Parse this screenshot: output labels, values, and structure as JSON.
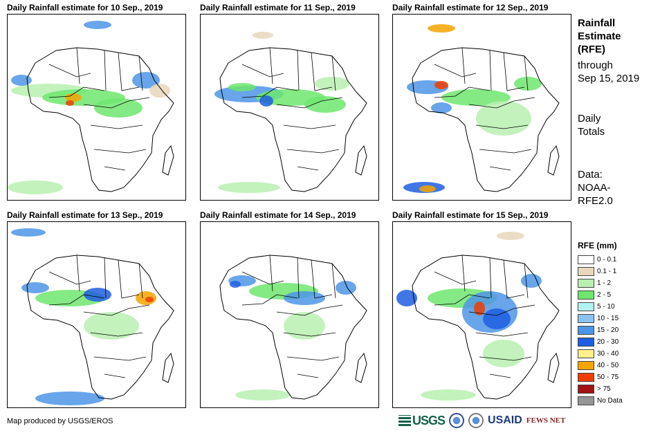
{
  "panels": [
    {
      "title": "Daily Rainfall estimate for 10 Sep., 2019"
    },
    {
      "title": "Daily Rainfall estimate for 11 Sep., 2019"
    },
    {
      "title": "Daily Rainfall estimate for 12 Sep., 2019"
    },
    {
      "title": "Daily Rainfall estimate for 13 Sep., 2019"
    },
    {
      "title": "Daily Rainfall estimate for 14 Sep., 2019"
    },
    {
      "title": "Daily Rainfall estimate for 15 Sep., 2019"
    }
  ],
  "sidebar": {
    "title_line1": "Rainfall",
    "title_line2": "Estimate",
    "title_line3": "(RFE)",
    "through_line1": "through",
    "through_line2": "Sep 15, 2019",
    "daily_line1": "Daily",
    "daily_line2": "Totals",
    "data_line1": "Data:",
    "data_line2": "NOAA-",
    "data_line3": "RFE2.0"
  },
  "legend": {
    "title": "RFE (mm)",
    "items": [
      {
        "label": "0 - 0.1",
        "color": "#ffffff"
      },
      {
        "label": "0.1 - 1",
        "color": "#e8d7bb"
      },
      {
        "label": "1 - 2",
        "color": "#b8f0b0"
      },
      {
        "label": "2 - 5",
        "color": "#6ee66e"
      },
      {
        "label": "5 - 10",
        "color": "#b2f2f2"
      },
      {
        "label": "10 - 15",
        "color": "#8cc3f0"
      },
      {
        "label": "15 - 20",
        "color": "#4d95e6"
      },
      {
        "label": "20 - 30",
        "color": "#1f5ee0"
      },
      {
        "label": "30 - 40",
        "color": "#fff18c"
      },
      {
        "label": "40 - 50",
        "color": "#f5a500"
      },
      {
        "label": "50 - 75",
        "color": "#f03c00"
      },
      {
        "label": "> 75",
        "color": "#a01414"
      },
      {
        "label": "No Data",
        "color": "#969696"
      }
    ]
  },
  "credit": "Map produced by USGS/EROS",
  "logos": {
    "usgs": "USGS",
    "usaid": "USAID",
    "fews": "FEWS NET"
  }
}
